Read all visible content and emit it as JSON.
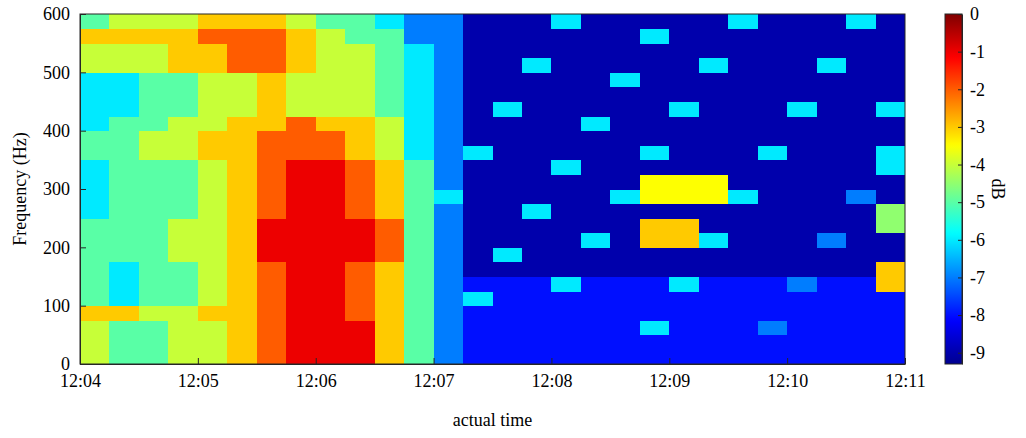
{
  "chart_data": {
    "type": "heatmap",
    "xlabel": "actual time",
    "ylabel": "Frequency (Hz)",
    "xlim": [
      "12:04",
      "12:11"
    ],
    "xticks": [
      "12:04",
      "12:05",
      "12:06",
      "12:07",
      "12:08",
      "12:09",
      "12:10",
      "12:11"
    ],
    "ylim": [
      0,
      600
    ],
    "yticks": [
      0,
      100,
      200,
      300,
      400,
      500,
      600
    ],
    "x": [
      "12:04:00",
      "12:04:15",
      "12:04:30",
      "12:04:45",
      "12:05:00",
      "12:05:15",
      "12:05:30",
      "12:05:45",
      "12:06:00",
      "12:06:15",
      "12:06:30",
      "12:06:45",
      "12:07:00",
      "12:07:15",
      "12:07:30",
      "12:07:45",
      "12:08:00",
      "12:08:15",
      "12:08:30",
      "12:08:45",
      "12:09:00",
      "12:09:15",
      "12:09:30",
      "12:09:45",
      "12:10:00",
      "12:10:15",
      "12:10:30",
      "12:10:45",
      "12:11:00"
    ],
    "y": [
      0,
      25,
      50,
      75,
      100,
      125,
      150,
      175,
      200,
      225,
      250,
      275,
      300,
      325,
      350,
      375,
      400,
      425,
      450,
      475,
      500,
      525,
      550,
      575,
      600
    ],
    "z": [
      [
        -4,
        -5,
        -5,
        -4,
        -4,
        -3,
        -2,
        -1,
        -1,
        -1,
        -3,
        -5,
        -7,
        -8,
        -8,
        -8,
        -8,
        -8,
        -8,
        -8,
        -8,
        -8,
        -8,
        -8,
        -8,
        -8,
        -8,
        -8
      ],
      [
        -4,
        -5,
        -5,
        -4,
        -4,
        -3,
        -2,
        -1,
        -1,
        -1,
        -3,
        -5,
        -7,
        -8,
        -8,
        -8,
        -8,
        -8,
        -8,
        -8,
        -8,
        -8,
        -8,
        -8,
        -8,
        -8,
        -8,
        -8
      ],
      [
        -4,
        -5,
        -5,
        -4,
        -4,
        -3,
        -2,
        -1,
        -1,
        -1,
        -3,
        -5,
        -7,
        -8,
        -8,
        -8,
        -8,
        -8,
        -8,
        -6,
        -8,
        -8,
        -8,
        -7,
        -8,
        -8,
        -8,
        -8
      ],
      [
        -3,
        -3,
        -4,
        -4,
        -3,
        -3,
        -2,
        -1,
        -1,
        -2,
        -3,
        -5,
        -7,
        -8,
        -8,
        -8,
        -8,
        -8,
        -8,
        -8,
        -8,
        -8,
        -8,
        -8,
        -8,
        -8,
        -8,
        -8
      ],
      [
        -5,
        -6,
        -5,
        -5,
        -4,
        -3,
        -2,
        -1,
        -1,
        -2,
        -3,
        -5,
        -7,
        -6,
        -8,
        -8,
        -8,
        -8,
        -8,
        -8,
        -8,
        -8,
        -8,
        -8,
        -8,
        -8,
        -8,
        -8
      ],
      [
        -5,
        -6,
        -5,
        -5,
        -4,
        -3,
        -2,
        -1,
        -1,
        -2,
        -3,
        -5,
        -7,
        -8,
        -8,
        -8,
        -6,
        -8,
        -8,
        -8,
        -6,
        -8,
        -8,
        -8,
        -7,
        -8,
        -8,
        -3
      ],
      [
        -5,
        -6,
        -5,
        -5,
        -4,
        -3,
        -2,
        -1,
        -1,
        -2,
        -3,
        -5,
        -7,
        -9,
        -9,
        -9,
        -9,
        -9,
        -9,
        -9,
        -9,
        -9,
        -9,
        -9,
        -9,
        -9,
        -9,
        -3
      ],
      [
        -5,
        -5,
        -5,
        -4,
        -4,
        -3,
        -1,
        -1,
        -1,
        -1,
        -2,
        -5,
        -7,
        -9,
        -6,
        -9,
        -9,
        -9,
        -9,
        -9,
        -9,
        -9,
        -9,
        -9,
        -9,
        -9,
        -9,
        -9
      ],
      [
        -5,
        -5,
        -5,
        -4,
        -4,
        -3,
        -1,
        -1,
        -1,
        -1,
        -2,
        -5,
        -7,
        -9,
        -9,
        -9,
        -9,
        -6,
        -9,
        -3,
        -3,
        -6,
        -9,
        -9,
        -9,
        -7,
        -9,
        -9
      ],
      [
        -5,
        -5,
        -5,
        -4,
        -4,
        -3,
        -1,
        -1,
        -1,
        -1,
        -2,
        -5,
        -7,
        -9,
        -9,
        -9,
        -9,
        -9,
        -9,
        -3,
        -3,
        -9,
        -9,
        -9,
        -9,
        -9,
        -9,
        -4.5
      ],
      [
        -6,
        -5,
        -5,
        -5,
        -4,
        -3,
        -2,
        -1,
        -1,
        -2,
        -3,
        -5,
        -7,
        -9,
        -9,
        -6,
        -9,
        -9,
        -9,
        -9,
        -9,
        -9,
        -9,
        -9,
        -9,
        -9,
        -9,
        -4.5
      ],
      [
        -6,
        -5,
        -5,
        -5,
        -4,
        -3,
        -2,
        -1,
        -1,
        -2,
        -3,
        -5,
        -6,
        -9,
        -9,
        -9,
        -9,
        -9,
        -6,
        -3.5,
        -3.5,
        -3.5,
        -6,
        -9,
        -9,
        -9,
        -7,
        -9
      ],
      [
        -6,
        -5,
        -5,
        -5,
        -4,
        -3,
        -2,
        -1,
        -1,
        -2,
        -3,
        -5,
        -7,
        -9,
        -9,
        -9,
        -9,
        -9,
        -9,
        -3.5,
        -3.5,
        -3.5,
        -9,
        -9,
        -9,
        -9,
        -9,
        -9
      ],
      [
        -6,
        -5,
        -5,
        -5,
        -4,
        -3,
        -2,
        -1,
        -1,
        -2,
        -3,
        -5,
        -7,
        -9,
        -9,
        -9,
        -6,
        -9,
        -9,
        -9,
        -9,
        -9,
        -9,
        -9,
        -9,
        -9,
        -9,
        -6
      ],
      [
        -5,
        -5,
        -4,
        -4,
        -3,
        -3,
        -2,
        -2,
        -2,
        -3,
        -4,
        -6,
        -7,
        -6,
        -9,
        -9,
        -9,
        -9,
        -9,
        -6,
        -9,
        -9,
        -9,
        -6,
        -9,
        -9,
        -9,
        -6
      ],
      [
        -5,
        -5,
        -4,
        -4,
        -3,
        -3,
        -2,
        -2,
        -2,
        -3,
        -4,
        -6,
        -7,
        -9,
        -9,
        -9,
        -9,
        -9,
        -9,
        -9,
        -9,
        -9,
        -9,
        -9,
        -9,
        -9,
        -9,
        -9
      ],
      [
        -6,
        -5,
        -5,
        -4,
        -4,
        -3,
        -3,
        -2,
        -3,
        -3,
        -4,
        -6,
        -7,
        -9,
        -9,
        -9,
        -9,
        -6,
        -9,
        -9,
        -9,
        -9,
        -9,
        -9,
        -9,
        -9,
        -9,
        -9
      ],
      [
        -6,
        -6,
        -5,
        -5,
        -4,
        -4,
        -3,
        -4,
        -4,
        -4,
        -5,
        -6,
        -7,
        -9,
        -6,
        -9,
        -9,
        -9,
        -9,
        -9,
        -6,
        -9,
        -9,
        -9,
        -6,
        -9,
        -9,
        -6
      ],
      [
        -6,
        -6,
        -5,
        -5,
        -4,
        -4,
        -3,
        -4,
        -4,
        -4,
        -5,
        -6,
        -7,
        -9,
        -9,
        -9,
        -9,
        -9,
        -9,
        -9,
        -9,
        -9,
        -9,
        -9,
        -9,
        -9,
        -9,
        -9
      ],
      [
        -6,
        -6,
        -5,
        -5,
        -4,
        -4,
        -3,
        -4,
        -4,
        -4,
        -5,
        -6,
        -7,
        -9,
        -9,
        -9,
        -9,
        -9,
        -6,
        -9,
        -9,
        -9,
        -9,
        -9,
        -9,
        -9,
        -9,
        -9
      ],
      [
        -4,
        -4,
        -4,
        -3,
        -3,
        -2,
        -2,
        -3,
        -4,
        -4,
        -5,
        -6,
        -7,
        -9,
        -9,
        -6,
        -9,
        -9,
        -9,
        -9,
        -9,
        -6,
        -9,
        -9,
        -9,
        -6,
        -9,
        -9
      ],
      [
        -4,
        -4,
        -4,
        -3,
        -3,
        -2,
        -2,
        -3,
        -4,
        -4,
        -5,
        -6,
        -7,
        -9,
        -9,
        -9,
        -9,
        -9,
        -9,
        -9,
        -9,
        -9,
        -9,
        -9,
        -9,
        -9,
        -9,
        -9
      ],
      [
        -3,
        -3,
        -3,
        -3,
        -2,
        -2,
        -2,
        -3,
        -4,
        -5,
        -5,
        -7,
        -7,
        -9,
        -9,
        -9,
        -9,
        -9,
        -9,
        -6,
        -9,
        -9,
        -9,
        -9,
        -9,
        -9,
        -9,
        -9
      ],
      [
        -5,
        -4,
        -4,
        -4,
        -3,
        -3,
        -3,
        -4,
        -5,
        -5,
        -6,
        -7,
        -7,
        -9,
        -9,
        -9,
        -6,
        -9,
        -9,
        -9,
        -9,
        -9,
        -6,
        -9,
        -9,
        -9,
        -6,
        -9
      ]
    ],
    "colorbar": {
      "label": "dB",
      "range": [
        -9.3,
        0
      ],
      "ticks": [
        0,
        -1,
        -2,
        -3,
        -4,
        -5,
        -6,
        -7,
        -8,
        -9
      ]
    }
  }
}
